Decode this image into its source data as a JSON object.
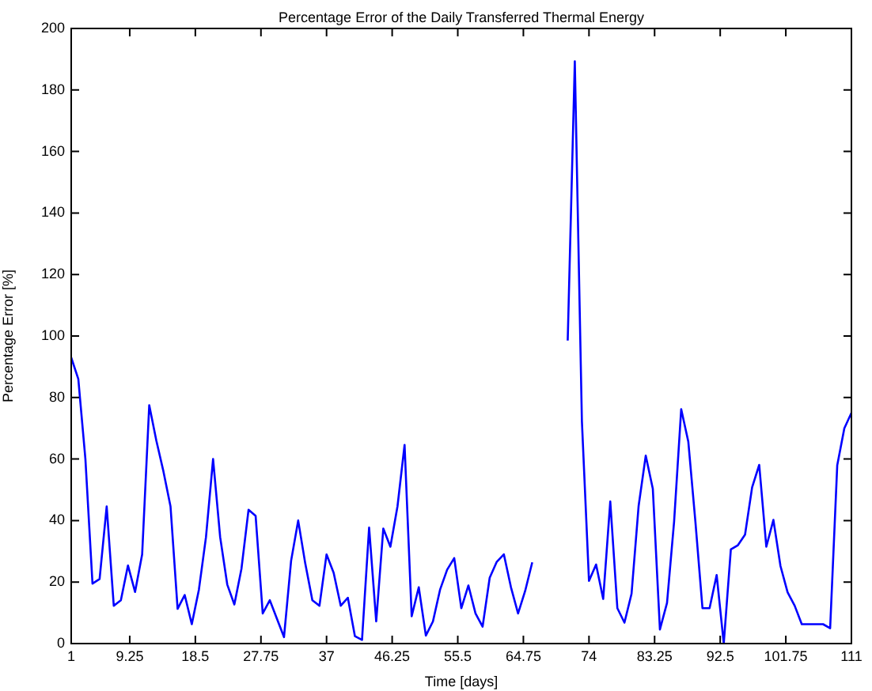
{
  "chart_data": {
    "type": "line",
    "title": "Percentage Error of the Daily Transferred Thermal Energy",
    "xlabel": "Time [days]",
    "ylabel": "Percentage Error [%]",
    "x": [
      1,
      2,
      3,
      4,
      5,
      6,
      7,
      8,
      9,
      10,
      11,
      12,
      13,
      14,
      15,
      16,
      17,
      18,
      19,
      20,
      21,
      22,
      23,
      24,
      25,
      26,
      27,
      28,
      29,
      30,
      31,
      32,
      33,
      34,
      35,
      36,
      37,
      38,
      39,
      40,
      41,
      42,
      43,
      44,
      45,
      46,
      47,
      48,
      49,
      50,
      51,
      52,
      53,
      54,
      55,
      56,
      57,
      58,
      59,
      60,
      61,
      62,
      63,
      64,
      65,
      66,
      68,
      71,
      72,
      73,
      74,
      75,
      76,
      77,
      78,
      79,
      80,
      81,
      82,
      83,
      84,
      85,
      86,
      87,
      88,
      89,
      90,
      91,
      92,
      93,
      94,
      95,
      96,
      97,
      98,
      99,
      100,
      101,
      102,
      103,
      104,
      105,
      106,
      107,
      108,
      109,
      110,
      111
    ],
    "series": [
      {
        "color": "#0000ff",
        "values": [
          93,
          86,
          60,
          19.5,
          21,
          44.6,
          12.3,
          14.1,
          25.4,
          16.8,
          29,
          77.5,
          66,
          56,
          44.6,
          11.3,
          15.8,
          6.3,
          17.5,
          34.6,
          60,
          34.6,
          19.2,
          12.7,
          24.3,
          43.5,
          41.5,
          9.8,
          14.1,
          8.1,
          2.1,
          26.9,
          40,
          26,
          14.1,
          12.3,
          29,
          23,
          12.3,
          14.9,
          2.4,
          1.2,
          37.7,
          7.2,
          37.4,
          31.5,
          44.6,
          64.6,
          8.9,
          18.3,
          2.6,
          7.2,
          17.5,
          24,
          27.8,
          11.5,
          18.9,
          9.8,
          5.5,
          21.4,
          26.6,
          29,
          18.3,
          9.8,
          17.1,
          26.4,
          null,
          98.5,
          189.3,
          72.3,
          20.4,
          25.7,
          14.5,
          46.2,
          11.5,
          6.8,
          16.2,
          44.8,
          61.1,
          50.3,
          4.6,
          13.2,
          39.7,
          76.2,
          65.7,
          39.7,
          11.5,
          11.5,
          22.3,
          0,
          30.6,
          32,
          35.4,
          50.8,
          58.1,
          31.5,
          40.2,
          25.2,
          16.7,
          12.3,
          6.3,
          6.3,
          6.3,
          6.3,
          5,
          58,
          70,
          75
        ]
      }
    ],
    "xlim": [
      1,
      111
    ],
    "xticks": [
      1,
      9.25,
      18.5,
      27.75,
      37,
      46.25,
      55.5,
      64.75,
      74,
      83.25,
      92.5,
      101.75,
      111
    ],
    "ylim": [
      0,
      200
    ],
    "yticks": [
      0,
      20,
      40,
      60,
      80,
      100,
      120,
      140,
      160,
      180,
      200
    ],
    "grid": false,
    "legend": false,
    "marker": "none",
    "line_style": "solid"
  }
}
